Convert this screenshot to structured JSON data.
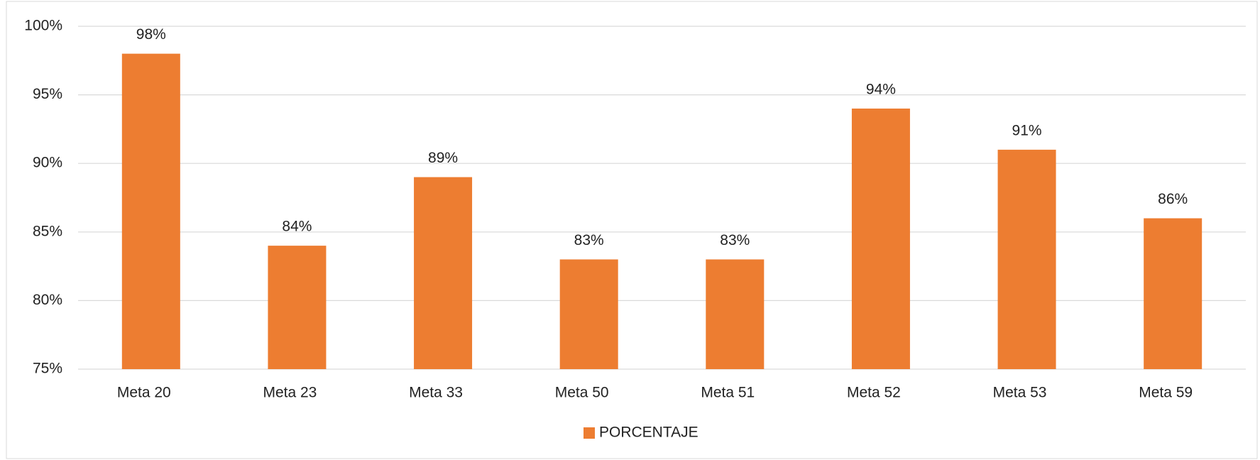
{
  "chart_data": {
    "type": "bar",
    "categories": [
      "Meta 20",
      "Meta 23",
      "Meta 33",
      "Meta 50",
      "Meta 51",
      "Meta 52",
      "Meta 53",
      "Meta 59"
    ],
    "series": [
      {
        "name": "PORCENTAJE",
        "color": "#ED7D31",
        "values": [
          98,
          84,
          89,
          83,
          83,
          94,
          91,
          86
        ],
        "value_labels": [
          "98%",
          "84%",
          "89%",
          "83%",
          "83%",
          "94%",
          "91%",
          "86%"
        ]
      }
    ],
    "ylim": [
      75,
      100
    ],
    "yticks": [
      {
        "value": 75,
        "label": "75%"
      },
      {
        "value": 80,
        "label": "80%"
      },
      {
        "value": 85,
        "label": "85%"
      },
      {
        "value": 90,
        "label": "90%"
      },
      {
        "value": 95,
        "label": "95%"
      },
      {
        "value": 100,
        "label": "100%"
      }
    ],
    "grid": true,
    "legend": "bottom"
  }
}
